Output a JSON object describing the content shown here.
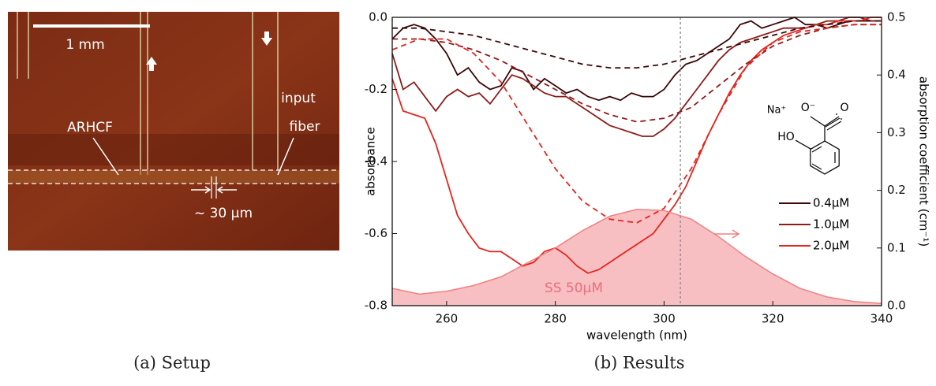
{
  "setup": {
    "scale_bar": "1 mm",
    "fiber_label": "ARHCF",
    "input_label": [
      "input",
      "fiber"
    ],
    "gap_label": "~ 30 µm",
    "caption": "(a) Setup"
  },
  "chart_data": {
    "type": "line",
    "caption": "(b) Results",
    "xlabel": "wavelength (nm)",
    "ylabel": "absorbance",
    "y2label": "absorption coefficient (cm⁻¹)",
    "xlim": [
      250,
      340
    ],
    "xticks": [
      260,
      280,
      300,
      320,
      340
    ],
    "ylim": [
      -0.8,
      0
    ],
    "yticks": [
      -0.8,
      -0.6,
      -0.4,
      -0.2,
      {
        "value": 0,
        "label": "0.0"
      }
    ],
    "y2lim": [
      0,
      0.5
    ],
    "y2ticks": [
      {
        "value": 0,
        "label": "0.0"
      },
      0.1,
      0.2,
      0.3,
      0.4,
      0.5
    ],
    "vline": 303,
    "legend": "lower right",
    "structure_labels": {
      "cation": "Na⁺",
      "carboxylate_o": "O⁻",
      "carbonyl_o": "O",
      "hydroxyl": "HO"
    },
    "x": [
      250,
      252,
      254,
      256,
      258,
      260,
      262,
      264,
      266,
      268,
      270,
      272,
      274,
      276,
      278,
      280,
      282,
      284,
      286,
      288,
      290,
      292,
      294,
      296,
      298,
      300,
      302,
      304,
      306,
      308,
      310,
      312,
      314,
      316,
      318,
      320,
      322,
      324,
      326,
      328,
      330,
      332,
      334,
      336,
      338,
      340
    ],
    "series": [
      {
        "name": "0.4µM",
        "color": "#3a0808",
        "values": [
          -0.06,
          -0.03,
          -0.02,
          -0.03,
          -0.06,
          -0.1,
          -0.16,
          -0.14,
          -0.18,
          -0.2,
          -0.19,
          -0.14,
          -0.15,
          -0.2,
          -0.17,
          -0.19,
          -0.21,
          -0.2,
          -0.22,
          -0.23,
          -0.22,
          -0.23,
          -0.21,
          -0.22,
          -0.22,
          -0.2,
          -0.16,
          -0.13,
          -0.12,
          -0.1,
          -0.08,
          -0.06,
          -0.02,
          -0.01,
          -0.03,
          -0.02,
          -0.01,
          0,
          -0.02,
          -0.02,
          -0.03,
          -0.02,
          -0.01,
          -0.01,
          -0.01,
          -0.01
        ]
      },
      {
        "name": "1.0µM",
        "color": "#8e1b1b",
        "values": [
          -0.1,
          -0.2,
          -0.18,
          -0.22,
          -0.26,
          -0.22,
          -0.2,
          -0.22,
          -0.21,
          -0.24,
          -0.2,
          -0.16,
          -0.17,
          -0.19,
          -0.21,
          -0.22,
          -0.22,
          -0.24,
          -0.26,
          -0.28,
          -0.3,
          -0.31,
          -0.32,
          -0.33,
          -0.33,
          -0.31,
          -0.28,
          -0.24,
          -0.2,
          -0.16,
          -0.12,
          -0.09,
          -0.07,
          -0.06,
          -0.05,
          -0.04,
          -0.03,
          -0.03,
          -0.03,
          -0.02,
          -0.01,
          -0.01,
          0,
          0,
          -0.01,
          -0.01
        ]
      },
      {
        "name": "2.0µM",
        "color": "#e3251d",
        "values": [
          -0.17,
          -0.26,
          -0.27,
          -0.28,
          -0.35,
          -0.45,
          -0.55,
          -0.6,
          -0.64,
          -0.65,
          -0.65,
          -0.67,
          -0.69,
          -0.68,
          -0.65,
          -0.64,
          -0.66,
          -0.69,
          -0.71,
          -0.7,
          -0.68,
          -0.66,
          -0.64,
          -0.62,
          -0.6,
          -0.56,
          -0.52,
          -0.47,
          -0.4,
          -0.33,
          -0.27,
          -0.21,
          -0.16,
          -0.12,
          -0.09,
          -0.07,
          -0.05,
          -0.04,
          -0.03,
          -0.02,
          -0.02,
          -0.01,
          -0.01,
          -0.01,
          0,
          0
        ]
      },
      {
        "color": "#3a0808",
        "dashed": true,
        "x": [
          250,
          255,
          260,
          265,
          270,
          275,
          280,
          285,
          290,
          295,
          300,
          305,
          310,
          315,
          320,
          325,
          330,
          335,
          340
        ],
        "values": [
          -0.03,
          -0.03,
          -0.04,
          -0.05,
          -0.07,
          -0.09,
          -0.11,
          -0.13,
          -0.14,
          -0.14,
          -0.13,
          -0.11,
          -0.09,
          -0.07,
          -0.05,
          -0.03,
          -0.02,
          -0.01,
          -0.01
        ]
      },
      {
        "color": "#8e1b1b",
        "dashed": true,
        "x": [
          250,
          255,
          260,
          265,
          270,
          275,
          280,
          285,
          290,
          295,
          300,
          305,
          310,
          315,
          320,
          325,
          330,
          335,
          340
        ],
        "values": [
          -0.06,
          -0.06,
          -0.07,
          -0.09,
          -0.12,
          -0.16,
          -0.2,
          -0.24,
          -0.27,
          -0.29,
          -0.28,
          -0.25,
          -0.19,
          -0.13,
          -0.08,
          -0.05,
          -0.03,
          -0.02,
          -0.02
        ]
      },
      {
        "color": "#e3251d",
        "dashed": true,
        "x": [
          250,
          255,
          260,
          265,
          270,
          275,
          280,
          285,
          290,
          295,
          300,
          305,
          310,
          315,
          320,
          325,
          330,
          335,
          340
        ],
        "values": [
          -0.09,
          -0.06,
          -0.06,
          -0.1,
          -0.18,
          -0.3,
          -0.42,
          -0.51,
          -0.56,
          -0.57,
          -0.53,
          -0.42,
          -0.27,
          -0.14,
          -0.07,
          -0.04,
          -0.03,
          -0.02,
          -0.02
        ]
      },
      {
        "label": "SS 50µM",
        "color": "#f08080",
        "fill": "#f8bfc2",
        "area": true,
        "axis": "y2",
        "x": [
          250,
          255,
          260,
          265,
          270,
          275,
          280,
          285,
          290,
          295,
          300,
          305,
          310,
          315,
          320,
          325,
          330,
          335,
          340
        ],
        "values": [
          0.03,
          0.02,
          0.025,
          0.035,
          0.05,
          0.075,
          0.1,
          0.13,
          0.155,
          0.167,
          0.165,
          0.15,
          0.12,
          0.085,
          0.055,
          0.03,
          0.015,
          0.007,
          0.004
        ]
      }
    ]
  }
}
